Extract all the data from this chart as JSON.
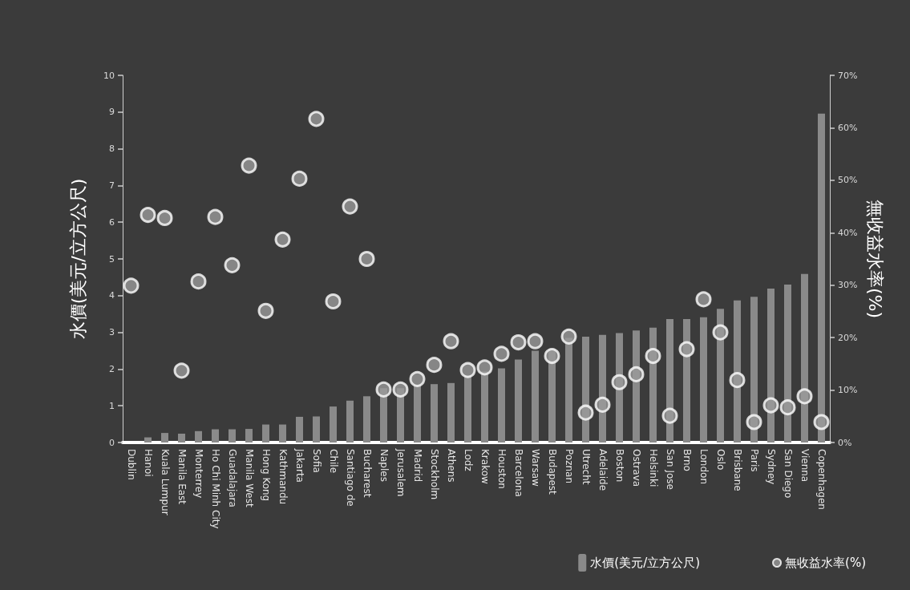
{
  "chart_data": {
    "type": "bar",
    "ylabel": "水價(美元/立方公尺)",
    "y2label": "無收益水率(%)",
    "categories": [
      "Dublin",
      "Hanoi",
      "Kuala Lumpur",
      "Manila East",
      "Monterrey",
      "Ho Chi Minh City",
      "Guadalajara",
      "Manila West",
      "Hong Kong",
      "Kathmandu",
      "Jakarta",
      "Sofia",
      "Chile",
      "Santiago de",
      "Bucharest",
      "Naples",
      "Jerusalem",
      "Madrid",
      "Stockholm",
      "Athens",
      "Lodz",
      "Krakow",
      "Houston",
      "Barcelona",
      "Warsaw",
      "Budapest",
      "Poznan",
      "Utrecht",
      "Adelaide",
      "Boston",
      "Ostrava",
      "Helsinki",
      "San Jose",
      "Brno",
      "London",
      "Oslo",
      "Brisbane",
      "Paris",
      "Sydney",
      "San Diego",
      "Vienna",
      "Copenhagen"
    ],
    "series": [
      {
        "name": "水價(美元/立方公尺)",
        "color": "#8a8a8a",
        "values": [
          null,
          0.14,
          0.26,
          0.24,
          0.31,
          0.36,
          0.36,
          0.37,
          0.49,
          0.49,
          0.7,
          0.71,
          0.98,
          1.14,
          1.26,
          1.48,
          1.48,
          1.57,
          1.59,
          1.62,
          1.83,
          1.94,
          2.02,
          2.26,
          2.5,
          2.55,
          2.85,
          2.88,
          2.93,
          2.98,
          3.05,
          3.13,
          3.36,
          3.36,
          3.41,
          3.64,
          3.87,
          3.97,
          4.19,
          4.3,
          4.59,
          8.96
        ]
      },
      {
        "name": "無收益水率(%)",
        "type": "scatter",
        "axis": "y2",
        "color": "#9a9a9a",
        "values": [
          29.9,
          43.4,
          42.8,
          13.7,
          30.7,
          43.0,
          33.8,
          52.8,
          25.1,
          38.7,
          50.3,
          61.7,
          26.9,
          45.0,
          35.0,
          10.1,
          10.1,
          12.1,
          14.8,
          19.3,
          13.8,
          14.3,
          16.9,
          19.1,
          19.3,
          16.5,
          20.2,
          5.7,
          7.2,
          11.5,
          13.0,
          16.5,
          5.1,
          17.8,
          27.3,
          21.0,
          11.9,
          3.9,
          7.1,
          6.7,
          8.8,
          3.9
        ]
      }
    ],
    "ylim": [
      0,
      10
    ],
    "yticks": [
      0,
      1,
      2,
      3,
      4,
      5,
      6,
      7,
      8,
      9,
      10
    ],
    "y2lim": [
      0,
      70
    ],
    "y2ticks": [
      {
        "value": 0,
        "label": "0%"
      },
      {
        "value": 10,
        "label": "10%"
      },
      {
        "value": 20,
        "label": "20%"
      },
      {
        "value": 30,
        "label": "30%"
      },
      {
        "value": 40,
        "label": "40%"
      },
      {
        "value": 50,
        "label": "50%"
      },
      {
        "value": 60,
        "label": "60%"
      },
      {
        "value": 70,
        "label": "70%"
      }
    ],
    "grid": false,
    "legend": "bottom right",
    "marker": "circle"
  }
}
